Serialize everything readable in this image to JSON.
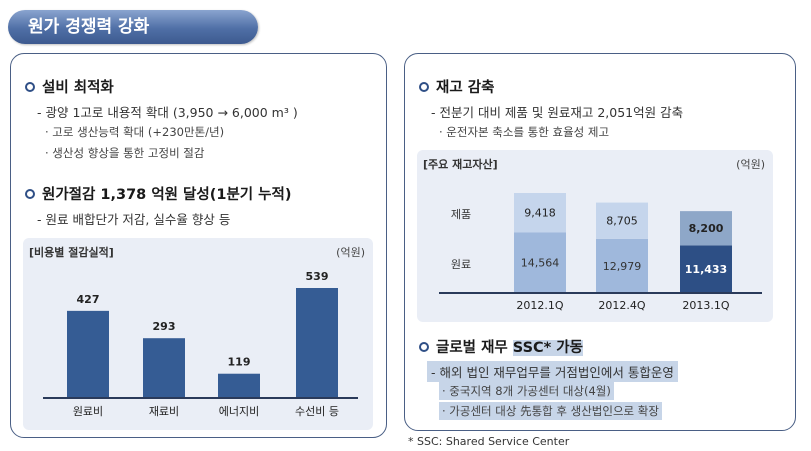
{
  "title": "원가 경쟁력 강화",
  "left": {
    "section1": {
      "heading": "설비 최적화",
      "line1": "- 광양 1고로 내용적 확대 (3,950 → 6,000 m³ )",
      "sub1": "· 고로 생산능력 확대 (+230만톤/년)",
      "sub2": "· 생산성 향상을 통한 고정비 절감"
    },
    "section2": {
      "heading": "원가절감 1,378 억원 달성(1분기 누적)",
      "line1": "- 원료 배합단가 저감, 실수율 향상 등"
    },
    "chart_title": "[비용별 절감실적]",
    "chart_unit": "(억원)"
  },
  "right": {
    "section1": {
      "heading": "재고 감축",
      "line1": "- 전분기 대비 제품 및 원료재고 2,051억원 감축",
      "sub1": "· 운전자본 축소를 통한 효율성 제고"
    },
    "chart_title": "[주요 재고자산]",
    "chart_unit": "(억원)",
    "section2": {
      "heading_prefix": "글로벌 재무 ",
      "heading_highlight": "SSC* 가동",
      "line1": "- 해외 법인 재무업무를 거점법인에서 통합운영",
      "sub1": "· 중국지역 8개 가공센터 대상(4월)",
      "sub2": "· 가공센터 대상 先통합 후 생산법인으로 확장"
    }
  },
  "footnote": "* SSC: Shared Service Center",
  "colors": {
    "bar_dark": "#355c94",
    "bar_light": "#9fb8dc",
    "bar_lighter": "#c5d5ec",
    "bar_latest_top": "#8ea7c8",
    "bar_latest_bottom": "#2d4f85"
  },
  "chart_data": [
    {
      "type": "bar",
      "title": "[비용별 절감실적]",
      "categories": [
        "원료비",
        "재료비",
        "에너지비",
        "수선비 등"
      ],
      "values": [
        427,
        293,
        119,
        539
      ],
      "value_labels": [
        "427",
        "293",
        "119",
        "539"
      ]
    },
    {
      "type": "bar",
      "stacked": true,
      "title": "[주요 재고자산]",
      "categories": [
        "2012.1Q",
        "2012.4Q",
        "2013.1Q"
      ],
      "series": [
        {
          "name": "원료",
          "values": [
            14564,
            12979,
            11433
          ],
          "labels": [
            "14,564",
            "12,979",
            "11,433"
          ]
        },
        {
          "name": "제품",
          "values": [
            9418,
            8705,
            8200
          ],
          "labels": [
            "9,418",
            "8,705",
            "8,200"
          ]
        }
      ]
    }
  ]
}
